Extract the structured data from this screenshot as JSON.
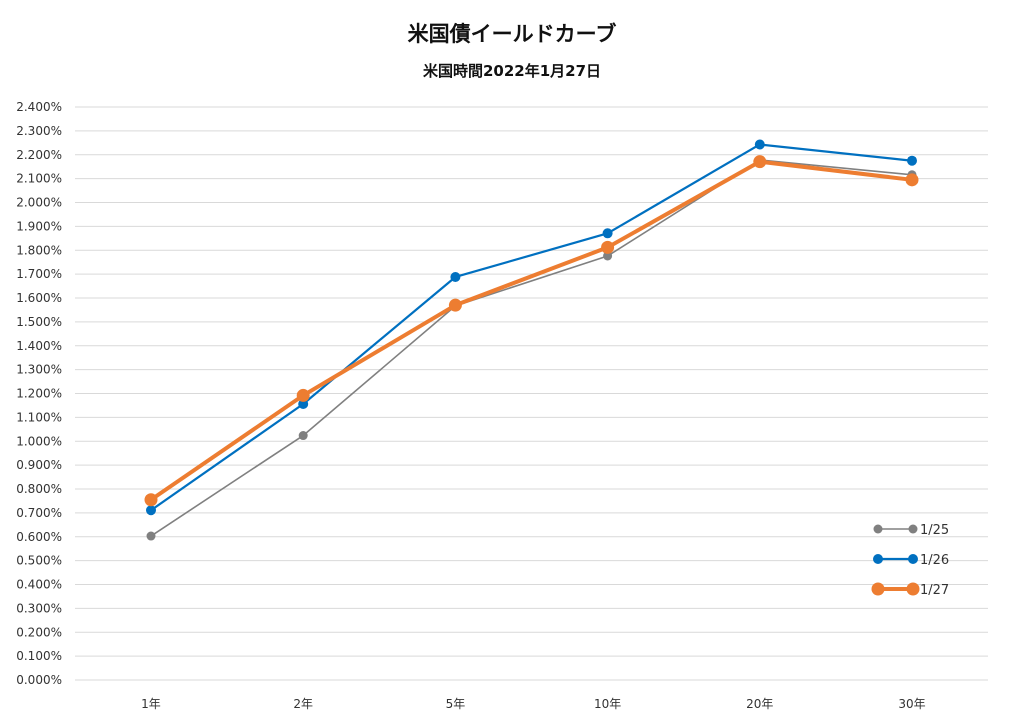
{
  "chart_data": {
    "type": "line",
    "title": "米国債イールドカーブ",
    "subtitle": "米国時間2022年1月27日",
    "categories": [
      "1年",
      "2年",
      "5年",
      "10年",
      "20年",
      "30年"
    ],
    "series": [
      {
        "name": "1/25",
        "color": "#808080",
        "values": [
          0.603,
          1.024,
          1.567,
          1.776,
          2.178,
          2.116
        ]
      },
      {
        "name": "1/26",
        "color": "#0070C0",
        "values": [
          0.711,
          1.156,
          1.688,
          1.871,
          2.243,
          2.175
        ]
      },
      {
        "name": "1/27",
        "color": "#ED7D31",
        "values": [
          0.755,
          1.192,
          1.57,
          1.812,
          2.171,
          2.095
        ]
      }
    ],
    "ylim": [
      0,
      2.4
    ],
    "ystep": 0.1,
    "ytick_format": "percent-3dp",
    "grid": true,
    "legend_position": "bottom-right"
  }
}
